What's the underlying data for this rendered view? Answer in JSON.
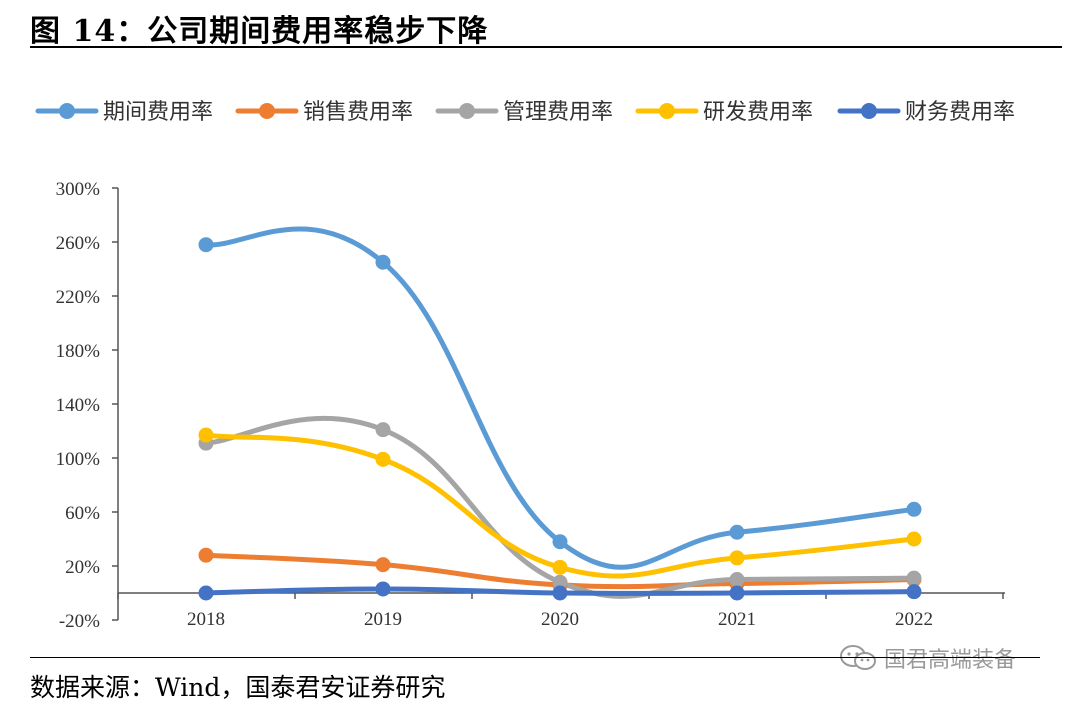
{
  "title": "图 14：公司期间费用率稳步下降",
  "source": "数据来源：Wind，国泰君安证券研究",
  "watermark": "国君高端装备",
  "chart_data": {
    "type": "line",
    "categories": [
      "2018",
      "2019",
      "2020",
      "2021",
      "2022"
    ],
    "ylim": [
      -20,
      300
    ],
    "yticks": [
      "-20%",
      "20%",
      "60%",
      "100%",
      "140%",
      "180%",
      "220%",
      "260%",
      "300%"
    ],
    "ytick_values": [
      -20,
      20,
      60,
      100,
      140,
      180,
      220,
      260,
      300
    ],
    "legend_position": "top",
    "series": [
      {
        "name": "期间费用率",
        "color": "#5B9BD5",
        "values": [
          258,
          245,
          38,
          45,
          62
        ]
      },
      {
        "name": "销售费用率",
        "color": "#ED7D31",
        "values": [
          28,
          21,
          6,
          7,
          10
        ]
      },
      {
        "name": "管理费用率",
        "color": "#A5A5A5",
        "values": [
          111,
          121,
          8,
          10,
          11
        ]
      },
      {
        "name": "研发费用率",
        "color": "#FFC000",
        "values": [
          117,
          99,
          19,
          26,
          40
        ]
      },
      {
        "name": "财务费用率",
        "color": "#4472C4",
        "values": [
          0,
          3,
          0,
          0,
          1
        ]
      }
    ]
  }
}
